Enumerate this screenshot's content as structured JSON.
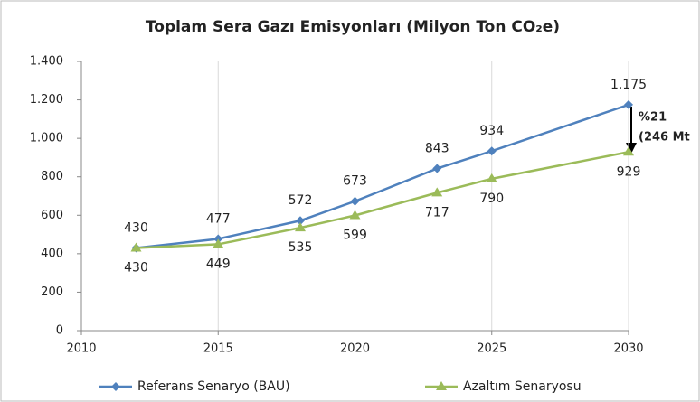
{
  "chart_data": {
    "type": "line",
    "title": "Toplam Sera Gazı Emisyonları (Milyon Ton CO₂e)",
    "x": [
      2012,
      2015,
      2018,
      2020,
      2023,
      2025,
      2030
    ],
    "series": [
      {
        "name": "Referans Senaryo (BAU)",
        "color": "#4f81bd",
        "marker": "diamond",
        "values": [
          430,
          477,
          572,
          673,
          843,
          934,
          1175
        ],
        "value_labels": [
          "430",
          "477",
          "572",
          "673",
          "843",
          "934",
          "1.175"
        ]
      },
      {
        "name": "Azaltım Senaryosu",
        "color": "#9bbb59",
        "marker": "triangle",
        "values": [
          430,
          449,
          535,
          599,
          717,
          790,
          929
        ]
      }
    ],
    "xlim": [
      2010,
      2030
    ],
    "xticks": [
      2010,
      2015,
      2020,
      2025,
      2030
    ],
    "ylim": [
      0,
      1400
    ],
    "yticks": [
      0,
      200,
      400,
      600,
      800,
      {
        "value": 1000,
        "label": "1.000"
      },
      {
        "value": 1200,
        "label": "1.200"
      },
      {
        "value": 1400,
        "label": "1.400"
      }
    ],
    "grid": "x",
    "legend": "bottom",
    "annotations": [
      "%21",
      "(246 Mt"
    ]
  }
}
